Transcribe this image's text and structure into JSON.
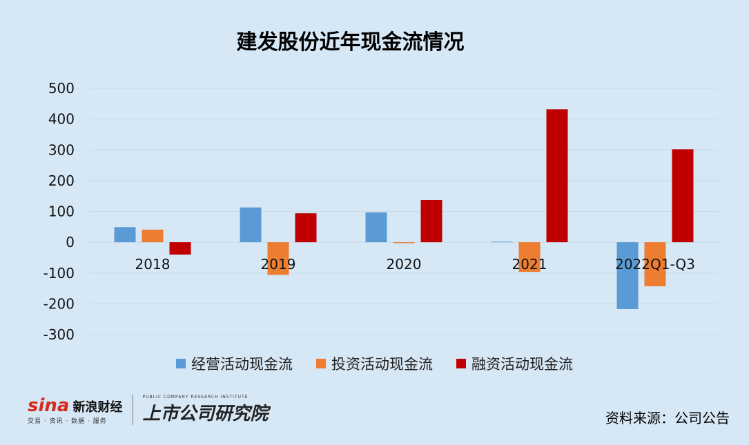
{
  "chart_data": {
    "type": "bar",
    "title": "建发股份近年现金流情况",
    "categories": [
      "2018",
      "2019",
      "2020",
      "2021",
      "2022Q1-Q3"
    ],
    "series": [
      {
        "name": "经营活动现金流",
        "color": "#5b9bd5",
        "values": [
          49,
          113,
          97,
          2,
          -217
        ]
      },
      {
        "name": "投资活动现金流",
        "color": "#ed7d31",
        "values": [
          41,
          -106,
          -3,
          -96,
          -143
        ]
      },
      {
        "name": "融资活动现金流",
        "color": "#c00000",
        "values": [
          -40,
          94,
          137,
          432,
          302
        ]
      }
    ],
    "y_ticks": [
      500,
      400,
      300,
      200,
      100,
      0,
      -100,
      -200,
      -300
    ],
    "ylim": [
      -300,
      500
    ],
    "grid": true,
    "legend_position": "bottom"
  },
  "source": "资料来源：公司公告",
  "logo": {
    "sina_text": "sina",
    "sina_cn": "新浪财经",
    "sina_sub": "交易 · 资讯 · 数据 · 服务",
    "institute_cn": "上市公司研究院",
    "institute_en": "PUBLIC COMPANY RESEARCH INSTITUTE"
  }
}
